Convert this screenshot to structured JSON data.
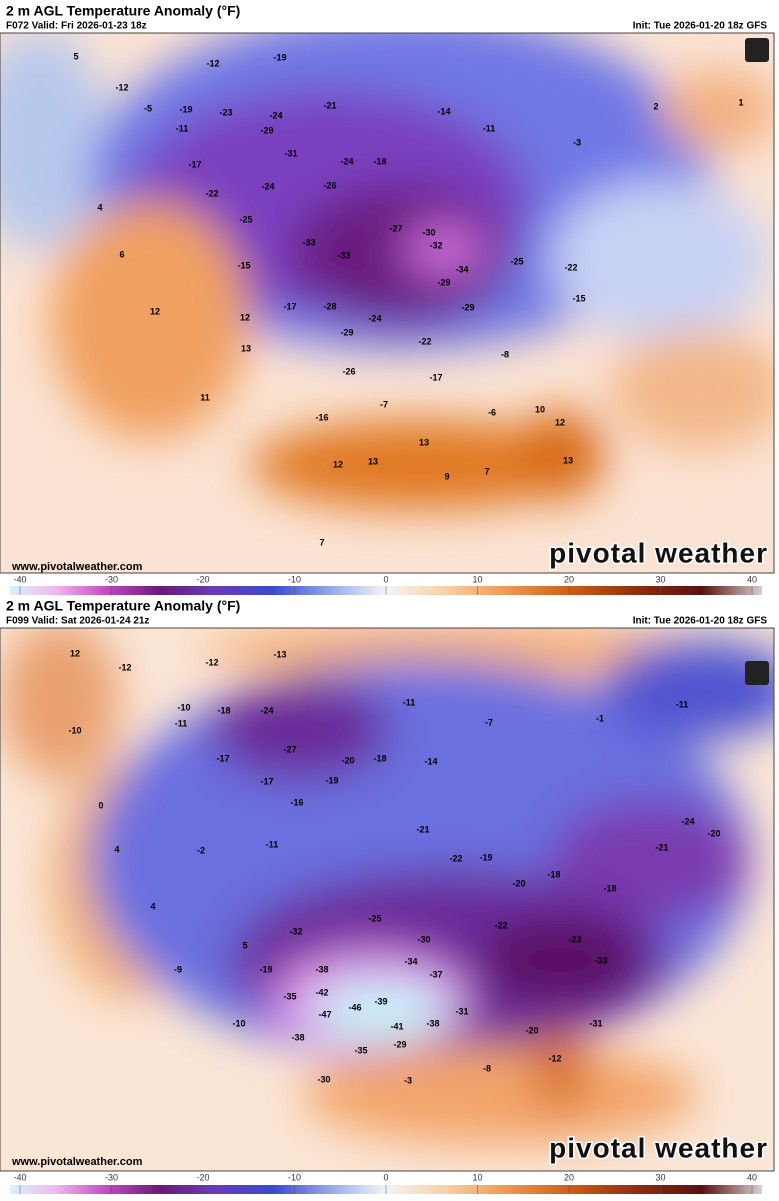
{
  "panels": [
    {
      "title": "2 m AGL Temperature Anomaly (°F)",
      "subtitle": "F072 Valid: Fri 2026-01-23 18z",
      "init": "Init: Tue 2026-01-20 18z GFS",
      "watermark": "www.pivotalweather.com",
      "brand": "pivotal weather",
      "map_labels": [
        5,
        -12,
        -5,
        -19,
        -11,
        -17,
        -23,
        -29,
        -24,
        -31,
        -12,
        -19,
        -21,
        -24,
        -18,
        -14,
        -11,
        2,
        -22,
        -24,
        -26,
        -27,
        -30,
        -32,
        -34,
        -29,
        -33,
        -33,
        -25,
        -15,
        -17,
        -28,
        -29,
        -24,
        -22,
        -29,
        -25,
        -22,
        -15,
        -8,
        -17,
        -26,
        -16,
        -7,
        -6,
        10,
        12,
        13,
        4,
        6,
        12,
        12,
        13,
        11,
        12,
        13,
        13,
        9,
        7,
        7,
        1,
        -3
      ],
      "colorbar_ticks": [
        -40,
        -30,
        -20,
        -10,
        0,
        10,
        20,
        30,
        40
      ]
    },
    {
      "title": "2 m AGL Temperature Anomaly (°F)",
      "subtitle": "F099 Valid: Sat 2026-01-24 21z",
      "init": "Init: Tue 2026-01-20 18z GFS",
      "watermark": "www.pivotalweather.com",
      "brand": "pivotal weather",
      "map_labels": [
        12,
        -10,
        -12,
        -12,
        -13,
        -10,
        -11,
        -18,
        -24,
        -27,
        -17,
        -20,
        -18,
        -11,
        -7,
        -14,
        -1,
        -11,
        -17,
        -19,
        -16,
        -21,
        -22,
        -19,
        -20,
        -18,
        -18,
        -21,
        -24,
        -20,
        0,
        4,
        -2,
        -11,
        4,
        5,
        -9,
        -10,
        -19,
        -35,
        -38,
        -42,
        -46,
        -39,
        -41,
        -38,
        -31,
        -34,
        -37,
        -47,
        -38,
        -35,
        -30,
        -29,
        -3,
        -8,
        -12,
        -31,
        -33,
        -20,
        -32,
        -25,
        -30,
        -22,
        -23
      ],
      "colorbar_ticks": [
        -40,
        -30,
        -20,
        -10,
        0,
        10,
        20,
        30,
        40
      ]
    }
  ]
}
